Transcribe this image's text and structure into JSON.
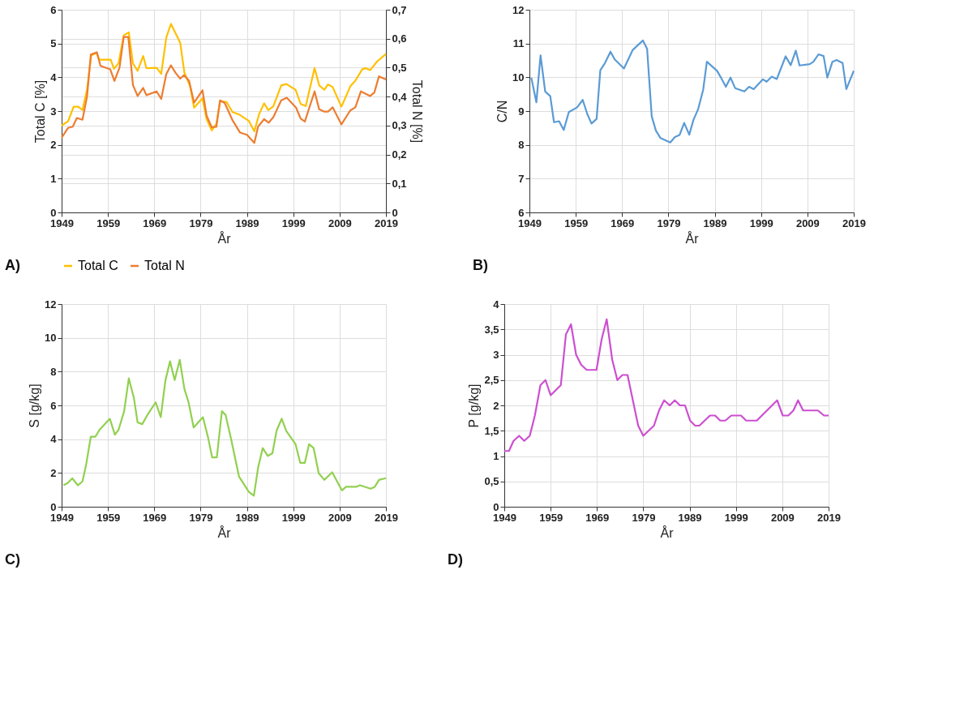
{
  "chart_data": [
    {
      "type": "line",
      "xlabel": "År",
      "ylabel": "Total C [%]",
      "y2label": "Total N [%]",
      "annotations": [
        "A)"
      ],
      "xlim": [
        1949,
        2019
      ],
      "xticks": [
        1949,
        1959,
        1969,
        1979,
        1989,
        1999,
        2009,
        2019
      ],
      "ylim": [
        0,
        6
      ],
      "yticks": [
        0,
        1,
        2,
        3,
        4,
        5,
        6
      ],
      "y2lim": [
        0,
        0.7
      ],
      "y2ticks": [
        0,
        {
          "value": 0.1,
          "label": "0,1"
        },
        {
          "value": 0.2,
          "label": "0,2"
        },
        {
          "value": 0.3,
          "label": "0,3"
        },
        {
          "value": 0.4,
          "label": "0,4"
        },
        {
          "value": 0.5,
          "label": "0,5"
        },
        {
          "value": 0.6,
          "label": "0,6"
        },
        {
          "value": 0.7,
          "label": "0,7"
        }
      ],
      "grid": true,
      "legend": "bottom",
      "series": [
        {
          "name": "Total C",
          "color": "#ffc000",
          "x": [
            1949,
            1950.4,
            1951.6,
            1952.6,
            1953.5,
            1954.5,
            1955.4,
            1956.6,
            1957.1,
            1959.6,
            1960.3,
            1961.3,
            1962.4,
            1963.5,
            1964.4,
            1965.4,
            1966.6,
            1967.3,
            1969.5,
            1970.5,
            1971.6,
            1972.6,
            1974.6,
            1975.5,
            1976.7,
            1977.6,
            1979.4,
            1980.3,
            1981.4,
            1982.4,
            1983.2,
            1984.6,
            1985.9,
            1987.3,
            1989.4,
            1990.6,
            1991.6,
            1992.7,
            1993.6,
            1994.7,
            1996.4,
            1997.5,
            1999.5,
            2000.6,
            2001.7,
            2003.6,
            2004.6,
            2005.7,
            2006.5,
            2007.5,
            2009.4,
            2011.3,
            2012.4,
            2013.9,
            2014.6,
            2015.6,
            2017.1,
            2019
          ],
          "values": [
            2.57,
            2.7,
            3.13,
            3.13,
            3.03,
            3.65,
            4.65,
            4.72,
            4.52,
            4.52,
            4.25,
            4.42,
            5.24,
            5.33,
            4.41,
            4.19,
            4.63,
            4.27,
            4.28,
            4.1,
            5.18,
            5.58,
            5.02,
            4.14,
            3.75,
            3.1,
            3.38,
            2.76,
            2.43,
            2.62,
            3.29,
            3.27,
            2.97,
            2.9,
            2.71,
            2.4,
            2.9,
            3.23,
            3.03,
            3.14,
            3.76,
            3.8,
            3.63,
            3.21,
            3.15,
            4.27,
            3.76,
            3.63,
            3.79,
            3.71,
            3.13,
            3.73,
            3.9,
            4.24,
            4.27,
            4.21,
            4.47,
            4.69
          ]
        },
        {
          "name": "Total N",
          "color": "#ed7d31",
          "axis": "y2",
          "x": [
            1949,
            1950.4,
            1951.4,
            1952.3,
            1953.5,
            1954.5,
            1955.3,
            1956.6,
            1957.4,
            1959.5,
            1960.4,
            1961.5,
            1962.4,
            1963.4,
            1964.4,
            1965.4,
            1966.6,
            1967.3,
            1969.5,
            1970.5,
            1971.6,
            1972.6,
            1973.6,
            1974.6,
            1975.4,
            1976.5,
            1977.6,
            1979.4,
            1980.3,
            1981.4,
            1982.4,
            1983.2,
            1984.2,
            1985.9,
            1987.5,
            1989.0,
            1990.6,
            1991.4,
            1992.7,
            1993.7,
            1994.7,
            1996.4,
            1997.6,
            1999.6,
            2000.6,
            2001.5,
            2003.6,
            2004.6,
            2005.7,
            2006.5,
            2007.5,
            2009.4,
            2011.3,
            2012.4,
            2013.6,
            2015.6,
            2016.5,
            2017.5,
            2019
          ],
          "values": [
            0.258,
            0.292,
            0.296,
            0.326,
            0.32,
            0.402,
            0.545,
            0.553,
            0.506,
            0.494,
            0.454,
            0.5,
            0.606,
            0.606,
            0.44,
            0.402,
            0.43,
            0.405,
            0.418,
            0.392,
            0.478,
            0.508,
            0.482,
            0.462,
            0.474,
            0.455,
            0.379,
            0.422,
            0.334,
            0.294,
            0.296,
            0.387,
            0.378,
            0.318,
            0.276,
            0.268,
            0.24,
            0.296,
            0.322,
            0.31,
            0.329,
            0.387,
            0.396,
            0.362,
            0.324,
            0.314,
            0.418,
            0.356,
            0.348,
            0.348,
            0.363,
            0.304,
            0.352,
            0.363,
            0.418,
            0.402,
            0.414,
            0.47,
            0.459
          ]
        }
      ]
    },
    {
      "type": "line",
      "xlabel": "År",
      "ylabel": "C/N",
      "annotations": [
        "B)"
      ],
      "xlim": [
        1949,
        2019
      ],
      "xticks": [
        1949,
        1959,
        1969,
        1979,
        1989,
        1999,
        2009,
        2019
      ],
      "ylim": [
        6,
        12
      ],
      "yticks": [
        6,
        7,
        8,
        9,
        10,
        11,
        12
      ],
      "grid": true,
      "series": [
        {
          "color": "#5b9bd5",
          "x": [
            1949.4,
            1950.5,
            1951.4,
            1952.4,
            1953.5,
            1954.3,
            1955.4,
            1956.4,
            1957.5,
            1959.3,
            1960.5,
            1961.5,
            1962.4,
            1963.5,
            1964.3,
            1965.3,
            1966.5,
            1967.4,
            1969.4,
            1971.3,
            1973.5,
            1974.4,
            1975.4,
            1976.3,
            1977.3,
            1979.4,
            1980.4,
            1981.4,
            1982.4,
            1983.5,
            1984.4,
            1985.4,
            1986.5,
            1987.3,
            1989.5,
            1990.3,
            1991.4,
            1992.4,
            1993.4,
            1995.4,
            1996.4,
            1997.4,
            1999.4,
            2000.2,
            2001.3,
            2002.4,
            2004.3,
            2005.4,
            2006.5,
            2007.3,
            2009.5,
            2010.3,
            2011.4,
            2012.5,
            2013.3,
            2014.4,
            2015.3,
            2016.6,
            2017.4,
            2019
          ],
          "values": [
            9.99,
            9.26,
            10.65,
            9.58,
            9.44,
            8.67,
            8.7,
            8.44,
            8.97,
            9.11,
            9.33,
            8.91,
            8.63,
            8.77,
            10.21,
            10.42,
            10.76,
            10.53,
            10.26,
            10.81,
            11.09,
            10.84,
            8.84,
            8.42,
            8.2,
            8.07,
            8.23,
            8.29,
            8.65,
            8.3,
            8.74,
            9.05,
            9.63,
            10.46,
            10.19,
            10.0,
            9.72,
            9.99,
            9.68,
            9.58,
            9.72,
            9.65,
            9.94,
            9.87,
            10.02,
            9.95,
            10.62,
            10.36,
            10.79,
            10.35,
            10.39,
            10.46,
            10.68,
            10.63,
            9.99,
            10.46,
            10.51,
            10.42,
            9.65,
            10.19
          ]
        }
      ]
    },
    {
      "type": "line",
      "xlabel": "År",
      "ylabel": "S [g/kg]",
      "annotations": [
        "C)"
      ],
      "xlim": [
        1949,
        2019
      ],
      "xticks": [
        1949,
        1959,
        1969,
        1979,
        1989,
        1999,
        2009,
        2019
      ],
      "ylim": [
        0,
        12
      ],
      "yticks": [
        0,
        2,
        4,
        6,
        8,
        10,
        12
      ],
      "grid": true,
      "series": [
        {
          "color": "#92d050",
          "x": [
            1949.4,
            1950.3,
            1951.3,
            1952.5,
            1953.5,
            1954.3,
            1955.3,
            1956.3,
            1957.2,
            1959.4,
            1960.5,
            1961.3,
            1962.5,
            1963.5,
            1964.6,
            1965.4,
            1966.4,
            1967.6,
            1969.3,
            1970.4,
            1971.4,
            1972.4,
            1973.4,
            1974.5,
            1975.5,
            1976.4,
            1977.5,
            1979.5,
            1980.6,
            1981.5,
            1982.5,
            1983.6,
            1984.4,
            1985.6,
            1987.3,
            1989.4,
            1990.5,
            1991.4,
            1992.4,
            1993.5,
            1994.5,
            1995.4,
            1996.5,
            1997.5,
            1999.5,
            2000.5,
            2001.5,
            2002.4,
            2003.4,
            2004.5,
            2005.7,
            2007.4,
            2009.5,
            2010.4,
            2012.6,
            2013.4,
            2014.2,
            2015.7,
            2016.6,
            2017.5,
            2019
          ],
          "values": [
            1.27,
            1.4,
            1.68,
            1.27,
            1.5,
            2.5,
            4.15,
            4.15,
            4.56,
            5.21,
            4.27,
            4.56,
            5.66,
            7.6,
            6.44,
            4.99,
            4.89,
            5.47,
            6.18,
            5.31,
            7.47,
            8.61,
            7.5,
            8.7,
            6.98,
            6.18,
            4.69,
            5.3,
            4.11,
            2.92,
            2.92,
            5.66,
            5.43,
            3.98,
            1.78,
            0.88,
            0.65,
            2.3,
            3.47,
            3.01,
            3.17,
            4.5,
            5.21,
            4.48,
            3.7,
            2.6,
            2.6,
            3.7,
            3.47,
            1.98,
            1.59,
            2.04,
            0.97,
            1.18,
            1.18,
            1.27,
            1.2,
            1.07,
            1.18,
            1.59,
            1.69
          ]
        }
      ]
    },
    {
      "type": "line",
      "xlabel": "År",
      "ylabel": "P [g/kg]",
      "annotations": [
        "D)"
      ],
      "xlim": [
        1949,
        2019
      ],
      "xticks": [
        1949,
        1959,
        1969,
        1979,
        1989,
        1999,
        2009,
        2019
      ],
      "ylim": [
        0,
        4
      ],
      "yticks": [
        0,
        {
          "value": 0.5,
          "label": "0,5"
        },
        1,
        {
          "value": 1.5,
          "label": "1,5"
        },
        2,
        {
          "value": 2.5,
          "label": "2,5"
        },
        3,
        {
          "value": 3.5,
          "label": "3,5"
        },
        4
      ],
      "grid": true,
      "series": [
        {
          "color": "#cc4fd0",
          "x": [
            1949,
            1950,
            1951,
            1952.2,
            1953.3,
            1954.5,
            1955.6,
            1956.8,
            1957.9,
            1959,
            1961.2,
            1962.3,
            1963.4,
            1964.5,
            1965.6,
            1966.8,
            1968.9,
            1970,
            1971.1,
            1972.3,
            1973.4,
            1974.5,
            1975.6,
            1977.9,
            1979,
            1981.3,
            1982.4,
            1983.5,
            1984.7,
            1985.8,
            1986.9,
            1988,
            1989.1,
            1990.2,
            1991.1,
            1993.4,
            1994.5,
            1995.6,
            1996.7,
            1998,
            2000.1,
            2001.2,
            2003.5,
            2005.7,
            2007.9,
            2009.1,
            2010.3,
            2011.4,
            2012.4,
            2013.5,
            2016.7,
            2018,
            2019
          ],
          "values": [
            1.1,
            1.1,
            1.3,
            1.4,
            1.3,
            1.4,
            1.8,
            2.4,
            2.5,
            2.2,
            2.4,
            3.4,
            3.6,
            3.0,
            2.8,
            2.7,
            2.7,
            3.3,
            3.7,
            2.9,
            2.5,
            2.6,
            2.6,
            1.6,
            1.4,
            1.6,
            1.9,
            2.1,
            2.0,
            2.1,
            2.0,
            2.0,
            1.7,
            1.6,
            1.6,
            1.8,
            1.8,
            1.7,
            1.7,
            1.8,
            1.8,
            1.7,
            1.7,
            1.9,
            2.1,
            1.8,
            1.8,
            1.9,
            2.1,
            1.9,
            1.9,
            1.8,
            1.8
          ]
        }
      ]
    }
  ]
}
